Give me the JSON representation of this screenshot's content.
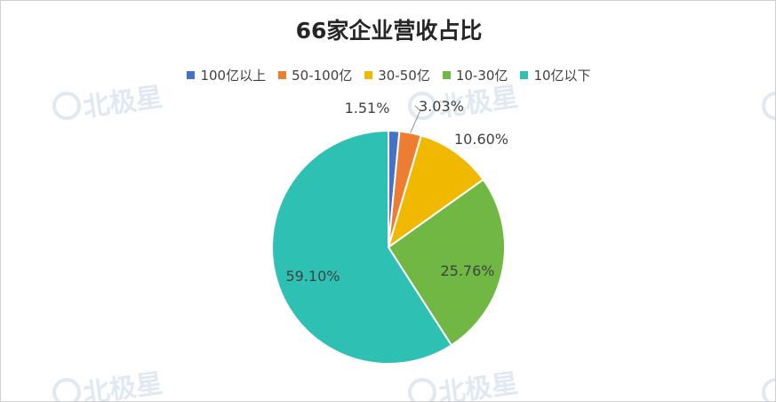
{
  "chart_data": {
    "type": "pie",
    "title": "66家企业营收占比",
    "categories": [
      "100亿以上",
      "50-100亿",
      "30-50亿",
      "10-30亿",
      "10亿以下"
    ],
    "values": [
      1.51,
      3.03,
      10.6,
      25.76,
      59.1
    ],
    "labels": [
      "1.51%",
      "3.03%",
      "10.60%",
      "25.76%",
      "59.10%"
    ],
    "colors": [
      "#4472c4",
      "#ed7d31",
      "#f0b800",
      "#70b843",
      "#2fc0b4"
    ],
    "legend_position": "top"
  },
  "watermark": {
    "text": "北极星",
    "color": "#c8d6e8"
  }
}
